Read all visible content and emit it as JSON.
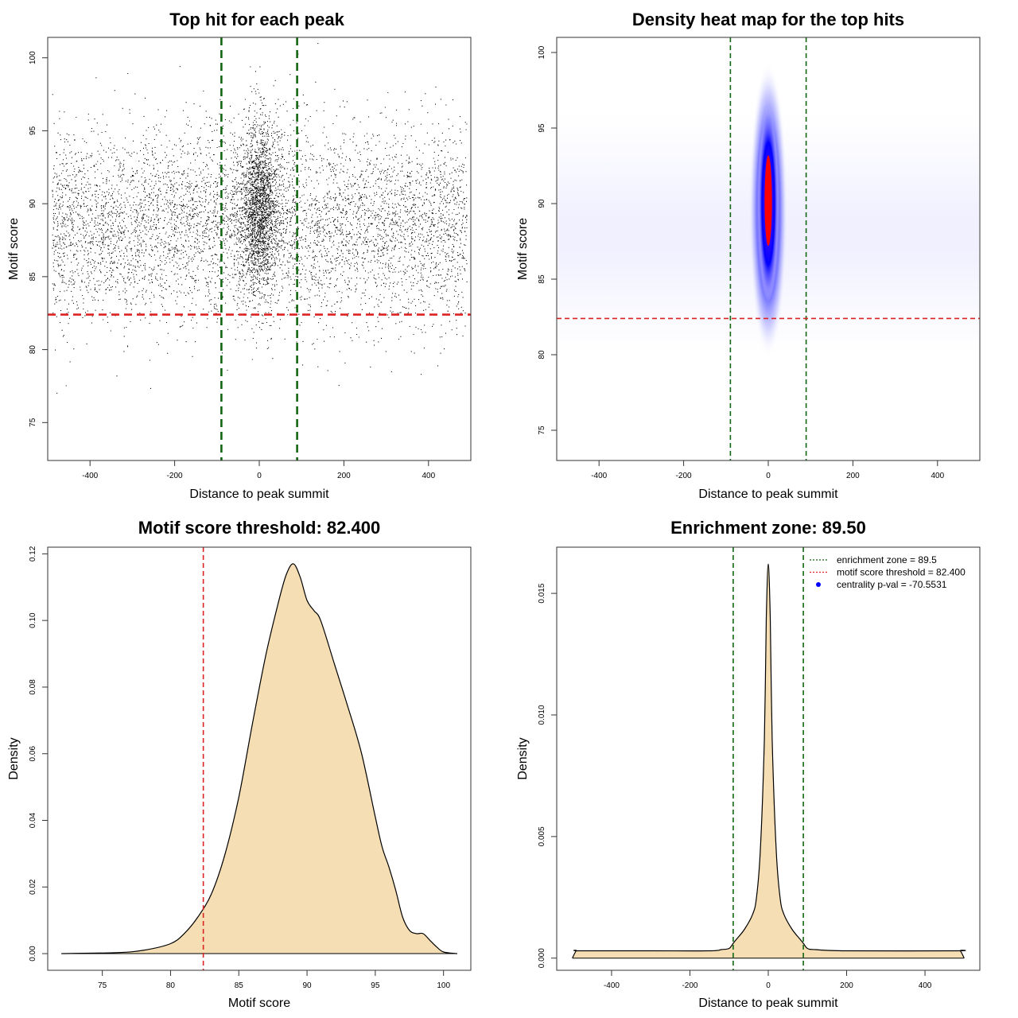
{
  "chart_data": [
    {
      "type": "scatter",
      "title": "Top hit for each peak",
      "xlabel": "Distance to peak summit",
      "ylabel": "Motif score",
      "xlim": [
        -500,
        500
      ],
      "ylim": [
        72.4,
        101.4
      ],
      "xticks": [
        -400,
        -200,
        0,
        200,
        400
      ],
      "yticks": [
        75,
        80,
        85,
        90,
        95,
        100
      ],
      "background_points": {
        "x_range": [
          -490,
          490
        ],
        "y_mean": 88.5,
        "y_sd": 3.3,
        "approx_count": 6000
      },
      "central_points": {
        "x_mean": 0,
        "x_sd": 22,
        "y_mean": 89.8,
        "y_sd": 2.9,
        "approx_count": 14000
      },
      "hlines": [
        {
          "y": 82.4,
          "color": "#dd2222",
          "style": "dashed"
        }
      ],
      "vlines": [
        {
          "x": -89.5,
          "color": "#116611",
          "style": "dashed"
        },
        {
          "x": 89.5,
          "color": "#116611",
          "style": "dashed"
        }
      ]
    },
    {
      "type": "heatmap",
      "title": "Density heat map for the top hits",
      "xlabel": "Distance to peak summit",
      "ylabel": "Motif score",
      "xlim": [
        -500,
        500
      ],
      "ylim": [
        73,
        101
      ],
      "xticks": [
        -400,
        -200,
        0,
        200,
        400
      ],
      "yticks": [
        75,
        80,
        85,
        90,
        95,
        100
      ],
      "density_peak": {
        "x": 0,
        "y": 90,
        "x_sd": 6,
        "y_sd": 3.2
      },
      "colors": [
        "#ffffff",
        "#0000ff",
        "#ff0000"
      ],
      "hlines": [
        {
          "y": 82.4,
          "color": "#dd2222",
          "style": "dashed"
        }
      ],
      "vlines": [
        {
          "x": -89.5,
          "color": "#116611",
          "style": "dashed"
        },
        {
          "x": 89.5,
          "color": "#116611",
          "style": "dashed"
        }
      ]
    },
    {
      "type": "area",
      "title": "Motif score threshold: 82.400",
      "xlabel": "Motif score",
      "ylabel": "Density",
      "xlim": [
        71,
        102
      ],
      "ylim": [
        -0.005,
        0.122
      ],
      "xticks": [
        75,
        80,
        85,
        90,
        95,
        100
      ],
      "yticks": [
        0.0,
        0.02,
        0.04,
        0.06,
        0.08,
        0.1,
        0.12
      ],
      "ytick_labels": [
        "0.00",
        "0.02",
        "0.04",
        "0.06",
        "0.08",
        "0.10",
        "0.12"
      ],
      "fill": "#f5deb3",
      "x": [
        72,
        76,
        78,
        80,
        81,
        82,
        83,
        84,
        85,
        86,
        87,
        88,
        88.5,
        89,
        89.5,
        90,
        90.5,
        91,
        92,
        93,
        94,
        95,
        95.5,
        96,
        96.5,
        97,
        97.5,
        98,
        98.5,
        99,
        99.5,
        100,
        101
      ],
      "y": [
        0,
        0.0003,
        0.001,
        0.003,
        0.006,
        0.011,
        0.018,
        0.03,
        0.047,
        0.069,
        0.09,
        0.107,
        0.114,
        0.117,
        0.113,
        0.106,
        0.103,
        0.1,
        0.087,
        0.074,
        0.06,
        0.041,
        0.032,
        0.026,
        0.019,
        0.011,
        0.007,
        0.006,
        0.006,
        0.004,
        0.002,
        0.0005,
        0
      ],
      "vlines": [
        {
          "x": 82.4,
          "color": "#dd2222",
          "style": "dashed"
        }
      ]
    },
    {
      "type": "area",
      "title": "Enrichment zone: 89.50",
      "xlabel": "Distance to peak summit",
      "ylabel": "Density",
      "xlim": [
        -540,
        540
      ],
      "ylim": [
        -0.0005,
        0.0169
      ],
      "xticks": [
        -400,
        -200,
        0,
        200,
        400
      ],
      "yticks": [
        0.0,
        0.005,
        0.01,
        0.015
      ],
      "ytick_labels": [
        "0.000",
        "0.005",
        "0.010",
        "0.015"
      ],
      "fill": "#f5deb3",
      "x": [
        -500,
        -490,
        -480,
        -300,
        -150,
        -120,
        -100,
        -90,
        -80,
        -60,
        -40,
        -30,
        -20,
        -10,
        -5,
        0,
        5,
        10,
        20,
        30,
        40,
        60,
        80,
        90,
        100,
        120,
        200,
        480,
        490,
        500
      ],
      "y": [
        0,
        0.0003,
        0.0003,
        0.0003,
        0.0003,
        0.00035,
        0.0004,
        0.0006,
        0.0008,
        0.0012,
        0.0018,
        0.0025,
        0.0045,
        0.009,
        0.014,
        0.0162,
        0.014,
        0.009,
        0.0045,
        0.0025,
        0.0018,
        0.0012,
        0.0008,
        0.0006,
        0.0004,
        0.00035,
        0.0003,
        0.0003,
        0.0003,
        0
      ],
      "vlines": [
        {
          "x": -89.5,
          "color": "#116611",
          "style": "dashed"
        },
        {
          "x": 89.5,
          "color": "#116611",
          "style": "dashed"
        }
      ],
      "legend": {
        "position": "top-right",
        "entries": [
          {
            "label": "enrichment zone = 89.5",
            "color": "#116611",
            "symbol": "dotted-line"
          },
          {
            "label": "motif score threshold = 82.400",
            "color": "#dd2222",
            "symbol": "dotted-line"
          },
          {
            "label": "centrality p-val = -70.5531",
            "color": "#0000ff",
            "symbol": "dot"
          }
        ]
      }
    }
  ]
}
